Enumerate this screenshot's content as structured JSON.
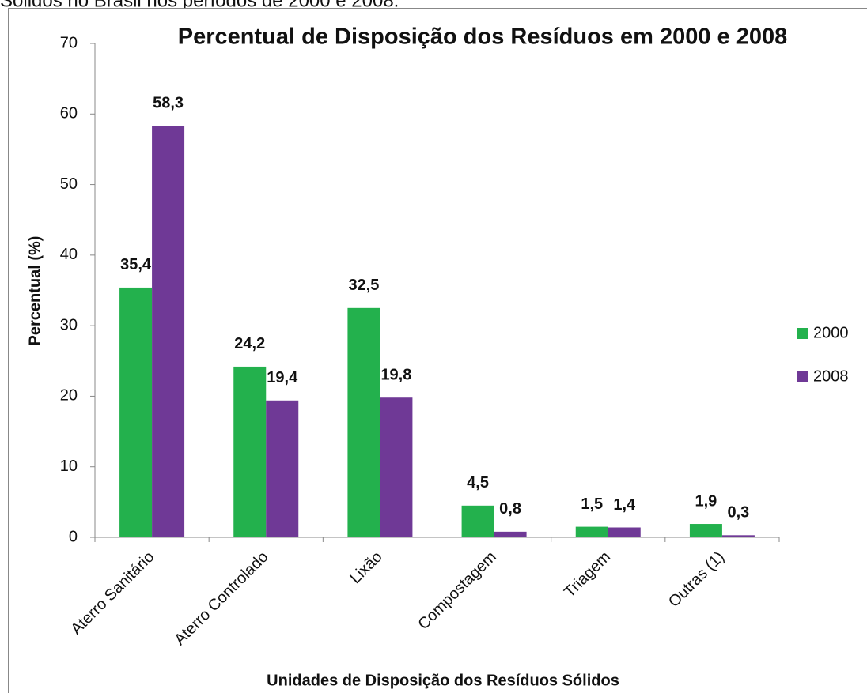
{
  "caption": "Sólidos no Brasil nos períodos de 2000 e 2008.",
  "chart_data": {
    "type": "bar",
    "title": "Percentual de Disposição dos Resíduos em 2000 e 2008",
    "y_label": "Percentual (%)",
    "x_label": "Unidades de Disposição dos Resíduos Sólidos",
    "categories": [
      "Aterro Sanitário",
      "Aterro Controlado",
      "Lixão",
      "Compostagem",
      "Triagem",
      "Outras (1)"
    ],
    "series": [
      {
        "name": "2000",
        "color": "#23b14d",
        "values": [
          35.4,
          24.2,
          32.5,
          4.5,
          1.5,
          1.9
        ],
        "value_labels": [
          "35,4",
          "24,2",
          "32,5",
          "4,5",
          "1,5",
          "1,9"
        ]
      },
      {
        "name": "2008",
        "color": "#6f3996",
        "values": [
          58.3,
          19.4,
          19.8,
          0.8,
          1.4,
          0.3
        ],
        "value_labels": [
          "58,3",
          "19,4",
          "19,8",
          "0,8",
          "1,4",
          "0,3"
        ]
      }
    ],
    "ylim": [
      0,
      70
    ],
    "yticks": [
      0,
      10,
      20,
      30,
      40,
      50,
      60,
      70
    ],
    "legend": "right"
  }
}
